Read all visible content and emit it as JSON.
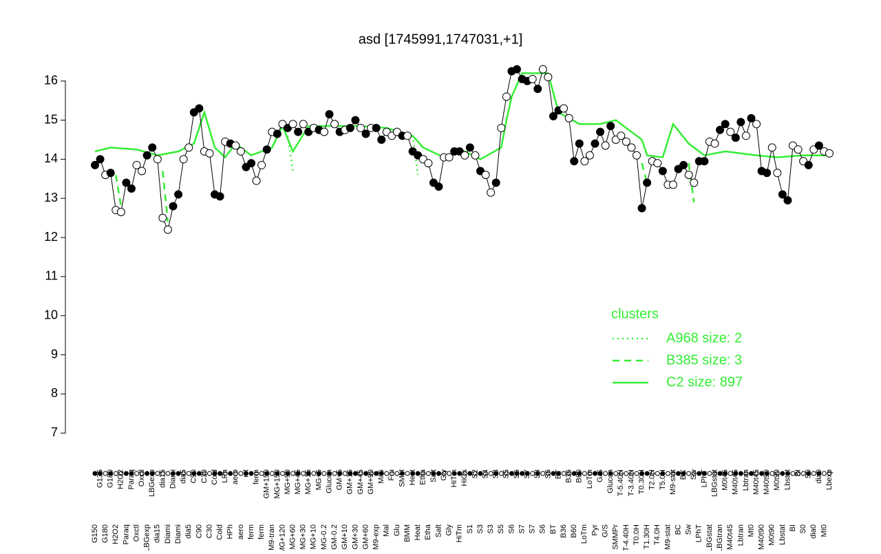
{
  "chart_data": {
    "type": "line",
    "title": "asd [1745991,1747031,+1]",
    "categories": [
      "G150",
      "G135",
      "G180",
      "G180",
      "H2O2",
      "H2O2",
      "Paraq",
      "Paraq",
      "Oxctl",
      "Oxctl",
      "LBGexp",
      "LBGexp",
      "dia15",
      "dia15",
      "Diami",
      "Diami",
      "Diami",
      "dia5",
      "dia5",
      "C90",
      "C90",
      "C30",
      "C30",
      "Cold",
      "Cold",
      "LPh",
      "HPh",
      "aero",
      "aero",
      "nit",
      "ferm",
      "ferm",
      "ferm",
      "GM+150",
      "M9-tran",
      "MG+150",
      "MG+120",
      "MG+90",
      "MG+60",
      "MG+45",
      "MG+30",
      "MG+15",
      "MG+10",
      "MG+5",
      "MG-0.2",
      "Glucon",
      "GM-0.2",
      "GM+5",
      "GM+10",
      "GM+15",
      "GM+30",
      "GM+45",
      "GM+60",
      "GM+90",
      "M9-exp",
      "M/G",
      "Mal",
      "Fru",
      "Glu",
      "SMM",
      "BMM",
      "Heat",
      "Heat",
      "Etha",
      "Etha",
      "Salt",
      "Salt",
      "Gly",
      "Gly",
      "HiTm",
      "HiTm",
      "HiOs",
      "S1",
      "S2",
      "S3",
      "S4",
      "S3",
      "S3",
      "S5",
      "S5",
      "S6",
      "S6",
      "S7",
      "S7",
      "S7",
      "S8",
      "S6",
      "S6",
      "BT",
      "BT",
      "B36",
      "B36",
      "B60",
      "B60",
      "LoTm",
      "LoTm",
      "Pyr",
      "G/S",
      "G/S",
      "Glucon",
      "SMMPr",
      "T-5.40H",
      "T-4.40H",
      "T-3.40H",
      "T0.0H",
      "T0.30H",
      "T1.30H",
      "T2.0H",
      "T4.0H",
      "T5.0H",
      "M9-stat",
      "M9-stat",
      "BC",
      "BC",
      "Sw",
      "Sw",
      "LPhT",
      "LPhT",
      "LBGstat",
      "LBGstat",
      "LBGtran",
      "M0t45",
      "M40t45",
      "M40t45",
      "Lbtran",
      "Lbtran",
      "Mt0",
      "M40t45",
      "M40t90",
      "M40t90",
      "M0t90",
      "M0t90",
      "Lbstat",
      "Lbstat",
      "BI",
      "BI",
      "S0",
      "S0",
      "dia0",
      "dia0",
      "Mt0",
      "Lbexp"
    ],
    "values": [
      13.85,
      14.0,
      13.6,
      13.65,
      12.7,
      12.65,
      13.4,
      13.25,
      13.85,
      13.7,
      14.1,
      14.3,
      14.0,
      12.5,
      12.2,
      12.8,
      13.1,
      14.0,
      14.3,
      15.2,
      15.3,
      14.2,
      14.15,
      13.1,
      13.05,
      14.45,
      14.4,
      14.35,
      14.2,
      13.8,
      13.9,
      13.45,
      13.85,
      14.25,
      14.7,
      14.65,
      14.9,
      14.8,
      14.9,
      14.7,
      14.9,
      14.7,
      14.8,
      14.75,
      14.7,
      15.15,
      14.9,
      14.7,
      14.75,
      14.8,
      15.0,
      14.8,
      14.65,
      14.8,
      14.8,
      14.5,
      14.7,
      14.6,
      14.7,
      14.6,
      14.6,
      14.2,
      14.1,
      14.0,
      13.9,
      13.4,
      13.3,
      14.05,
      14.05,
      14.2,
      14.2,
      14.1,
      14.3,
      14.1,
      13.7,
      13.6,
      13.15,
      13.4,
      14.8,
      15.6,
      16.25,
      16.3,
      16.05,
      16.0,
      16.05,
      15.8,
      16.3,
      16.1,
      15.1,
      15.25,
      15.3,
      15.05,
      13.95,
      14.4,
      13.95,
      14.1,
      14.4,
      14.7,
      14.35,
      14.85,
      14.5,
      14.6,
      14.45,
      14.3,
      14.1,
      12.75,
      13.4,
      13.95,
      13.9,
      13.7,
      13.35,
      13.35,
      13.75,
      13.85,
      13.6,
      13.4,
      13.95,
      13.95,
      14.45,
      14.4,
      14.75,
      14.9,
      14.7,
      14.55,
      14.95,
      14.6,
      15.05,
      14.9,
      13.7,
      13.65,
      14.3,
      13.65,
      13.1,
      12.95,
      14.35,
      14.25,
      13.95,
      13.85,
      14.25,
      14.35,
      14.2,
      14.15
    ],
    "filled": [
      true,
      true,
      false,
      true,
      false,
      false,
      true,
      true,
      false,
      false,
      true,
      true,
      false,
      false,
      false,
      true,
      true,
      false,
      false,
      true,
      true,
      false,
      false,
      true,
      true,
      false,
      true,
      false,
      false,
      true,
      true,
      false,
      false,
      true,
      false,
      true,
      false,
      true,
      false,
      true,
      false,
      true,
      false,
      true,
      false,
      true,
      false,
      true,
      false,
      true,
      true,
      false,
      true,
      false,
      true,
      true,
      false,
      false,
      false,
      true,
      false,
      true,
      true,
      false,
      false,
      true,
      true,
      false,
      false,
      true,
      true,
      false,
      true,
      false,
      true,
      false,
      false,
      true,
      false,
      false,
      true,
      true,
      true,
      true,
      false,
      true,
      false,
      false,
      true,
      true,
      false,
      false,
      true,
      true,
      false,
      false,
      true,
      true,
      false,
      true,
      false,
      false,
      false,
      false,
      false,
      true,
      true,
      false,
      false,
      true,
      false,
      false,
      true,
      true,
      false,
      false,
      true,
      true,
      false,
      false,
      true,
      true,
      false,
      true,
      true,
      false,
      true,
      false,
      true,
      true,
      false,
      false,
      true,
      true,
      false,
      false,
      false,
      true,
      false,
      true,
      false,
      false
    ],
    "color": "#000000",
    "ylim": [
      6.6,
      16.4
    ],
    "yticks": [
      7,
      8,
      9,
      10,
      11,
      12,
      13,
      14,
      15,
      16
    ],
    "legend": {
      "title": "clusters",
      "position": "right"
    },
    "clusters": [
      {
        "name": "A968 size: 2",
        "style": "dotted",
        "color": "#33ee33",
        "x": [
          37,
          38,
          null,
          61,
          62
        ],
        "values": [
          14.6,
          13.7,
          null,
          14.6,
          13.6
        ]
      },
      {
        "name": "B385 size: 3",
        "style": "dashed",
        "color": "#33ee33",
        "x": [
          4,
          5,
          null,
          13,
          14,
          null,
          105,
          106,
          null,
          114,
          115
        ],
        "values": [
          13.6,
          12.8,
          null,
          13.7,
          12.4,
          null,
          13.9,
          13.4,
          null,
          13.9,
          12.9
        ]
      },
      {
        "name": "C2 size: 897",
        "style": "solid",
        "color": "#33ee33",
        "x": [
          0,
          3,
          8,
          12,
          16,
          19,
          21,
          23,
          25,
          27,
          30,
          34,
          36,
          38,
          41,
          51,
          56,
          61,
          63,
          67,
          71,
          74,
          78,
          79,
          80,
          82,
          87,
          89,
          93,
          97,
          100,
          105,
          106,
          109,
          111,
          114,
          117,
          121,
          127,
          131,
          136,
          141
        ],
        "values": [
          14.2,
          14.3,
          14.25,
          14.1,
          14.2,
          14.4,
          15.2,
          14.3,
          14.05,
          14.4,
          14.1,
          14.3,
          14.85,
          14.2,
          14.85,
          14.85,
          14.8,
          14.6,
          14.3,
          14.05,
          14.2,
          14.0,
          14.3,
          15.0,
          15.6,
          16.2,
          16.2,
          15.2,
          14.9,
          14.9,
          15.0,
          14.5,
          14.1,
          14.05,
          14.9,
          14.4,
          14.1,
          14.2,
          14.1,
          14.05,
          14.1,
          14.1
        ]
      }
    ]
  }
}
